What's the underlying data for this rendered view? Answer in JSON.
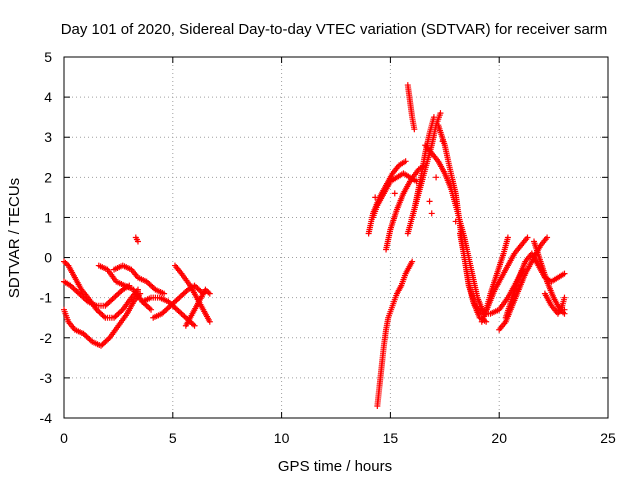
{
  "chart_data": {
    "type": "scatter",
    "title": "Day 101 of 2020, Sidereal Day-to-day VTEC variation (SDTVAR) for receiver sarm",
    "xlabel": "GPS time / hours",
    "ylabel": "SDTVAR / TECUs",
    "xlim": [
      0,
      25
    ],
    "ylim": [
      -4,
      5
    ],
    "x_ticks": [
      0,
      5,
      10,
      15,
      20,
      25
    ],
    "x_tick_labels": [
      "0",
      "5",
      "10",
      "15",
      "20",
      "25"
    ],
    "y_ticks": [
      -4,
      -3,
      -2,
      -1,
      0,
      1,
      2,
      3,
      4,
      5
    ],
    "y_tick_labels": [
      "-4",
      "-3",
      "-2",
      "-1",
      "0",
      "1",
      "2",
      "3",
      "4",
      "5"
    ],
    "grid": true,
    "legend": "none",
    "marker": "+",
    "color": "#ff0000",
    "series": [
      {
        "arcs": [
          [
            [
              0.0,
              -1.3
            ],
            [
              0.2,
              -1.6
            ],
            [
              0.5,
              -1.8
            ],
            [
              0.9,
              -1.9
            ],
            [
              1.3,
              -2.1
            ],
            [
              1.7,
              -2.2
            ],
            [
              2.1,
              -2.0
            ],
            [
              2.5,
              -1.7
            ],
            [
              2.9,
              -1.4
            ],
            [
              3.2,
              -1.1
            ],
            [
              3.5,
              -0.9
            ]
          ],
          [
            [
              0.0,
              -0.6
            ],
            [
              0.3,
              -0.7
            ],
            [
              0.7,
              -0.9
            ],
            [
              1.1,
              -1.1
            ],
            [
              1.5,
              -1.2
            ],
            [
              1.9,
              -1.2
            ],
            [
              2.3,
              -1.0
            ],
            [
              2.7,
              -0.8
            ],
            [
              3.0,
              -0.7
            ]
          ],
          [
            [
              0.0,
              -0.1
            ],
            [
              0.2,
              -0.2
            ],
            [
              0.5,
              -0.5
            ],
            [
              0.8,
              -0.8
            ],
            [
              1.1,
              -1.0
            ],
            [
              1.5,
              -1.3
            ],
            [
              1.9,
              -1.5
            ],
            [
              2.3,
              -1.5
            ],
            [
              2.7,
              -1.3
            ],
            [
              3.1,
              -1.0
            ],
            [
              3.4,
              -0.8
            ]
          ],
          [
            [
              1.6,
              -0.2
            ],
            [
              2.0,
              -0.3
            ],
            [
              2.4,
              -0.6
            ],
            [
              2.8,
              -0.7
            ],
            [
              3.2,
              -0.8
            ],
            [
              3.6,
              -1.1
            ],
            [
              4.0,
              -1.3
            ]
          ],
          [
            [
              2.3,
              -0.3
            ],
            [
              2.7,
              -0.2
            ],
            [
              3.1,
              -0.3
            ],
            [
              3.4,
              -0.5
            ],
            [
              3.8,
              -0.6
            ],
            [
              4.2,
              -0.8
            ],
            [
              4.6,
              -0.9
            ]
          ],
          [
            [
              3.3,
              0.5
            ],
            [
              3.4,
              0.4
            ]
          ],
          [
            [
              3.6,
              -1.1
            ],
            [
              4.0,
              -1.0
            ],
            [
              4.4,
              -1.0
            ],
            [
              4.8,
              -1.1
            ],
            [
              5.2,
              -1.3
            ],
            [
              5.6,
              -1.5
            ],
            [
              6.0,
              -1.7
            ]
          ],
          [
            [
              4.1,
              -1.5
            ],
            [
              4.5,
              -1.4
            ],
            [
              4.9,
              -1.2
            ],
            [
              5.3,
              -1.0
            ],
            [
              5.7,
              -0.8
            ],
            [
              6.0,
              -0.7
            ],
            [
              6.4,
              -0.9
            ]
          ],
          [
            [
              5.1,
              -0.2
            ],
            [
              5.4,
              -0.4
            ],
            [
              5.8,
              -0.7
            ],
            [
              6.1,
              -1.0
            ],
            [
              6.4,
              -1.3
            ],
            [
              6.7,
              -1.6
            ]
          ],
          [
            [
              5.6,
              -1.7
            ],
            [
              5.9,
              -1.4
            ],
            [
              6.2,
              -1.1
            ],
            [
              6.5,
              -0.8
            ],
            [
              6.7,
              -0.9
            ]
          ],
          [
            [
              14.4,
              -3.7
            ],
            [
              14.5,
              -3.2
            ],
            [
              14.6,
              -2.7
            ],
            [
              14.7,
              -2.2
            ],
            [
              14.8,
              -1.8
            ],
            [
              14.9,
              -1.5
            ],
            [
              15.1,
              -1.2
            ],
            [
              15.3,
              -0.9
            ],
            [
              15.5,
              -0.7
            ],
            [
              15.7,
              -0.4
            ],
            [
              16.0,
              -0.1
            ]
          ],
          [
            [
              14.0,
              0.6
            ],
            [
              14.2,
              1.1
            ],
            [
              14.5,
              1.5
            ],
            [
              14.8,
              1.8
            ],
            [
              15.1,
              2.1
            ],
            [
              15.4,
              2.3
            ],
            [
              15.7,
              2.4
            ]
          ],
          [
            [
              14.2,
              1.0
            ],
            [
              14.4,
              1.3
            ],
            [
              14.7,
              1.6
            ],
            [
              15.0,
              1.9
            ],
            [
              15.3,
              2.0
            ],
            [
              15.6,
              2.1
            ],
            [
              15.9,
              2.0
            ],
            [
              16.2,
              1.9
            ]
          ],
          [
            [
              14.8,
              0.2
            ],
            [
              15.0,
              0.7
            ],
            [
              15.3,
              1.2
            ],
            [
              15.6,
              1.6
            ],
            [
              15.9,
              1.9
            ],
            [
              16.3,
              2.2
            ],
            [
              16.6,
              2.3
            ]
          ],
          [
            [
              15.8,
              4.3
            ],
            [
              15.9,
              3.9
            ],
            [
              16.0,
              3.5
            ],
            [
              16.1,
              3.2
            ]
          ],
          [
            [
              15.8,
              0.6
            ],
            [
              16.1,
              1.2
            ],
            [
              16.4,
              2.0
            ],
            [
              16.6,
              2.6
            ],
            [
              16.8,
              3.1
            ],
            [
              17.0,
              3.5
            ]
          ],
          [
            [
              16.0,
              1.0
            ],
            [
              16.3,
              1.6
            ],
            [
              16.6,
              2.2
            ],
            [
              16.9,
              2.8
            ],
            [
              17.1,
              3.3
            ],
            [
              17.3,
              3.6
            ]
          ],
          [
            [
              16.6,
              2.8
            ],
            [
              16.9,
              2.6
            ],
            [
              17.2,
              2.4
            ],
            [
              17.5,
              2.1
            ],
            [
              17.8,
              1.7
            ],
            [
              18.1,
              1.1
            ],
            [
              18.4,
              0.5
            ],
            [
              18.6,
              0.0
            ],
            [
              18.8,
              -0.5
            ],
            [
              19.0,
              -1.0
            ],
            [
              19.3,
              -1.4
            ]
          ],
          [
            [
              17.2,
              3.3
            ],
            [
              17.5,
              2.8
            ],
            [
              17.7,
              2.3
            ],
            [
              18.0,
              1.6
            ],
            [
              18.2,
              0.8
            ],
            [
              18.4,
              0.0
            ],
            [
              18.6,
              -0.6
            ],
            [
              18.8,
              -1.1
            ],
            [
              19.1,
              -1.5
            ],
            [
              19.4,
              -1.6
            ]
          ],
          [
            [
              18.2,
              0.6
            ],
            [
              18.4,
              0.0
            ],
            [
              18.6,
              -0.7
            ],
            [
              18.9,
              -1.2
            ],
            [
              19.2,
              -1.4
            ],
            [
              19.6,
              -1.4
            ],
            [
              20.0,
              -1.3
            ],
            [
              20.4,
              -1.0
            ],
            [
              20.8,
              -0.6
            ],
            [
              21.1,
              -0.3
            ]
          ],
          [
            [
              19.2,
              -1.6
            ],
            [
              19.5,
              -1.2
            ],
            [
              19.8,
              -0.8
            ],
            [
              20.1,
              -0.5
            ],
            [
              20.4,
              -0.2
            ],
            [
              20.7,
              0.1
            ],
            [
              21.0,
              0.3
            ],
            [
              21.3,
              0.5
            ]
          ],
          [
            [
              19.4,
              -1.3
            ],
            [
              19.6,
              -0.9
            ],
            [
              19.9,
              -0.4
            ],
            [
              20.2,
              0.1
            ],
            [
              20.4,
              0.5
            ]
          ],
          [
            [
              20.0,
              -1.8
            ],
            [
              20.3,
              -1.6
            ],
            [
              20.6,
              -1.2
            ],
            [
              20.9,
              -0.8
            ],
            [
              21.2,
              -0.4
            ],
            [
              21.6,
              0.0
            ],
            [
              21.9,
              0.3
            ],
            [
              22.2,
              0.5
            ]
          ],
          [
            [
              20.3,
              -1.5
            ],
            [
              20.6,
              -1.0
            ],
            [
              20.9,
              -0.5
            ],
            [
              21.2,
              -0.1
            ],
            [
              21.5,
              0.1
            ],
            [
              21.8,
              -0.2
            ],
            [
              22.1,
              -0.5
            ],
            [
              22.4,
              -0.6
            ],
            [
              22.7,
              -0.5
            ],
            [
              23.0,
              -0.4
            ]
          ],
          [
            [
              21.6,
              0.4
            ],
            [
              21.9,
              -0.1
            ],
            [
              22.2,
              -0.6
            ],
            [
              22.5,
              -1.0
            ],
            [
              22.8,
              -1.3
            ],
            [
              23.0,
              -1.4
            ]
          ],
          [
            [
              22.1,
              -0.9
            ],
            [
              22.4,
              -1.2
            ],
            [
              22.7,
              -1.4
            ],
            [
              22.9,
              -1.2
            ],
            [
              23.0,
              -1.0
            ]
          ],
          [
            [
              16.9,
              1.1
            ],
            [
              16.8,
              1.4
            ],
            [
              17.4,
              2.9
            ],
            [
              18.0,
              0.9
            ],
            [
              17.1,
              2.0
            ],
            [
              15.2,
              1.6
            ],
            [
              14.3,
              1.5
            ],
            [
              23.0,
              -1.3
            ]
          ]
        ]
      }
    ]
  }
}
